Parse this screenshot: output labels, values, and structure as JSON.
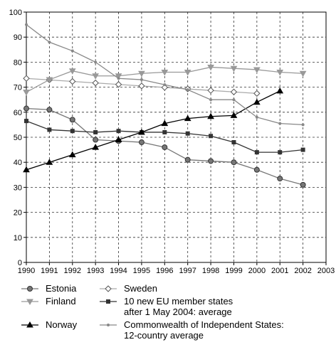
{
  "chart_data": {
    "type": "line",
    "x": [
      1990,
      1991,
      1992,
      1993,
      1994,
      1995,
      1996,
      1997,
      1998,
      1999,
      2000,
      2001,
      2002
    ],
    "xlim": [
      1990,
      2003
    ],
    "xticks": [
      1990,
      1991,
      1992,
      1993,
      1994,
      1995,
      1996,
      1997,
      1998,
      1999,
      2000,
      2001,
      2002,
      2003
    ],
    "ylim": [
      0,
      100
    ],
    "yticks": [
      0,
      10,
      20,
      30,
      40,
      50,
      60,
      70,
      80,
      90,
      100
    ],
    "grid": true,
    "series": [
      {
        "name": "Estonia",
        "color": "#777777",
        "marker": "circle",
        "values": [
          61.5,
          61,
          57,
          49,
          48.5,
          48,
          46,
          41,
          40.5,
          40,
          37,
          33.5,
          31
        ]
      },
      {
        "name": "Sweden",
        "color": "#aaaaaa",
        "marker": "diamond",
        "values": [
          73.5,
          72.9,
          72.3,
          71.7,
          71.1,
          70.5,
          69.9,
          69.3,
          68.7,
          68.1,
          67.5,
          null,
          null
        ]
      },
      {
        "name": "Finland",
        "color": "#999999",
        "marker": "triangle-down",
        "values": [
          68,
          73,
          76.5,
          74.5,
          74.5,
          75.5,
          76,
          76,
          78,
          77.5,
          77,
          76,
          75.5
        ]
      },
      {
        "name": "10 new EU member states\nafter 1 May 2004: average",
        "color": "#333333",
        "marker": "square",
        "values": [
          56.5,
          53,
          52.5,
          52,
          52.5,
          52,
          52,
          51.5,
          50.5,
          48,
          44,
          44,
          45
        ]
      },
      {
        "name": "Norway",
        "color": "#000000",
        "marker": "triangle-up",
        "values": [
          37,
          40,
          43,
          46,
          49,
          52,
          55.5,
          57.5,
          58.3,
          58.7,
          64,
          68.5,
          null
        ]
      },
      {
        "name": "Commonwealth of Independent States:\n12-country average",
        "color": "#888888",
        "marker": "dot",
        "values": [
          95,
          88,
          84.5,
          80,
          73.5,
          73,
          71,
          69,
          65,
          65,
          58,
          55.5,
          55
        ]
      }
    ]
  }
}
